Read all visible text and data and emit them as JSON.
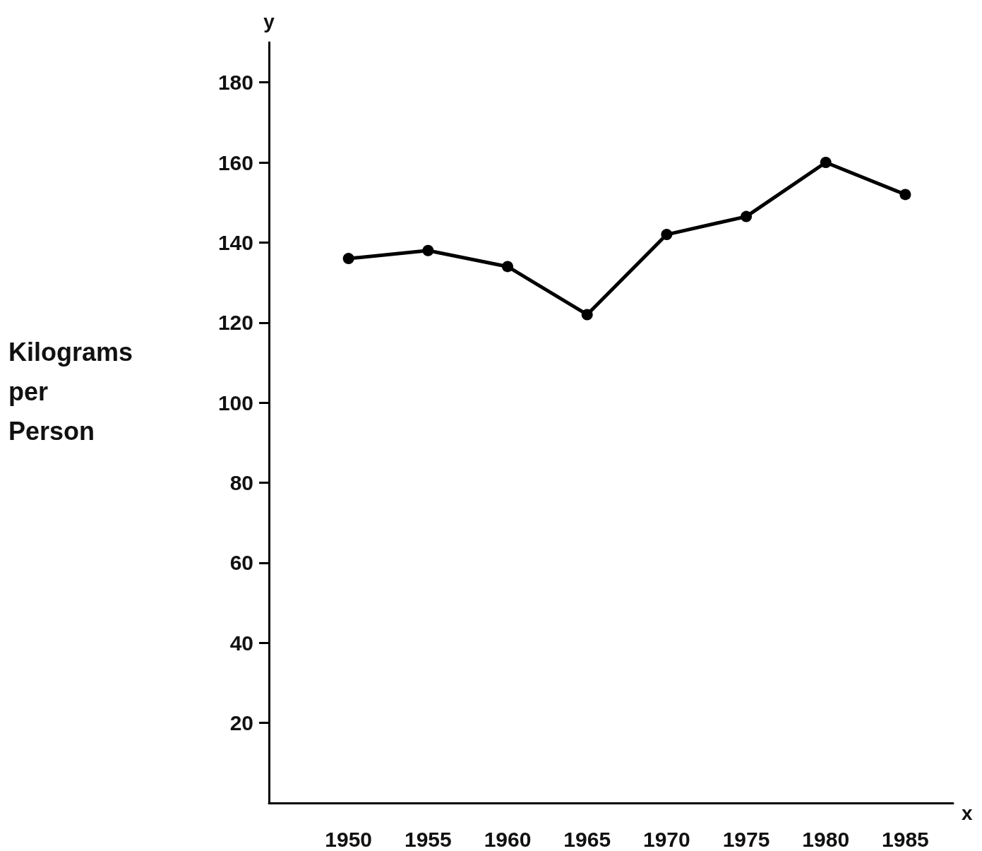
{
  "chart_data": {
    "type": "line",
    "xlabel": "x",
    "ylabel": "Kilograms per Person",
    "annotations": [
      "y"
    ],
    "x": [
      1950,
      1955,
      1960,
      1965,
      1970,
      1975,
      1980,
      1985
    ],
    "series": [
      {
        "color": "#000000",
        "values": [
          136,
          138,
          134,
          122,
          142,
          146.5,
          160,
          152
        ]
      }
    ],
    "xlim": [
      1945,
      1988
    ],
    "xticks": [
      1950,
      1955,
      1960,
      1965,
      1970,
      1975,
      1980,
      1985
    ],
    "ylim": [
      0,
      190
    ],
    "yticks": [
      20,
      40,
      60,
      80,
      100,
      120,
      140,
      160,
      180
    ],
    "grid": false,
    "marker": "circle",
    "line_style": "solid"
  }
}
